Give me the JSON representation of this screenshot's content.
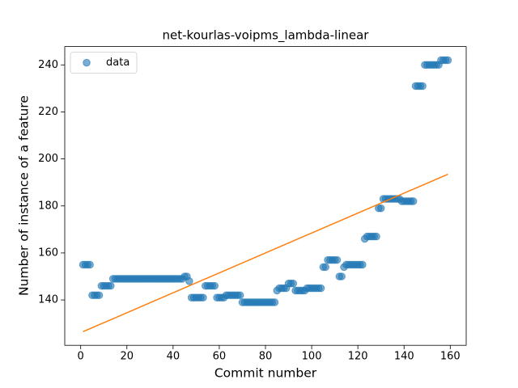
{
  "chart_data": {
    "type": "scatter",
    "title": "net-kourlas-voipms_lambda-linear",
    "xlabel": "Commit number",
    "ylabel": "Number of instance of a feature",
    "xlim": [
      -6.9,
      166.9
    ],
    "ylim": [
      120.7,
      247.8
    ],
    "xticks": [
      0,
      20,
      40,
      60,
      80,
      100,
      120,
      140,
      160
    ],
    "yticks": [
      140,
      160,
      180,
      200,
      220,
      240
    ],
    "legend": "upper left",
    "series": [
      {
        "name": "data",
        "color": "#1f77b4",
        "x": [
          1,
          2,
          3,
          4,
          5,
          6,
          7,
          8,
          9,
          10,
          11,
          12,
          13,
          14,
          15,
          16,
          17,
          18,
          19,
          20,
          21,
          22,
          23,
          24,
          25,
          26,
          27,
          28,
          29,
          30,
          31,
          32,
          33,
          34,
          35,
          36,
          37,
          38,
          39,
          40,
          41,
          42,
          43,
          44,
          45,
          46,
          47,
          48,
          49,
          50,
          51,
          52,
          53,
          54,
          55,
          56,
          57,
          58,
          59,
          60,
          61,
          62,
          63,
          64,
          65,
          66,
          67,
          68,
          69,
          70,
          71,
          72,
          73,
          74,
          75,
          76,
          77,
          78,
          79,
          80,
          81,
          82,
          83,
          84,
          85,
          86,
          87,
          88,
          89,
          90,
          91,
          92,
          93,
          94,
          95,
          96,
          97,
          98,
          99,
          100,
          101,
          102,
          103,
          104,
          105,
          106,
          107,
          108,
          109,
          110,
          111,
          112,
          113,
          114,
          115,
          116,
          117,
          118,
          119,
          120,
          121,
          122,
          123,
          124,
          125,
          126,
          127,
          128,
          129,
          130,
          131,
          132,
          133,
          134,
          135,
          136,
          137,
          138,
          139,
          140,
          141,
          142,
          143,
          144,
          145,
          146,
          147,
          148,
          149,
          150,
          151,
          152,
          153,
          154,
          155,
          156,
          157,
          158,
          159
        ],
        "values": [
          155,
          155,
          155,
          155,
          142,
          142,
          142,
          142,
          146,
          146,
          146,
          146,
          146,
          149,
          149,
          149,
          149,
          149,
          149,
          149,
          149,
          149,
          149,
          149,
          149,
          149,
          149,
          149,
          149,
          149,
          149,
          149,
          149,
          149,
          149,
          149,
          149,
          149,
          149,
          149,
          149,
          149,
          149,
          149,
          150,
          150,
          148,
          141,
          141,
          141,
          141,
          141,
          141,
          146,
          146,
          146,
          146,
          146,
          141,
          141,
          141,
          141,
          142,
          142,
          142,
          142,
          142,
          142,
          142,
          139,
          139,
          139,
          139,
          139,
          139,
          139,
          139,
          139,
          139,
          139,
          139,
          139,
          139,
          139,
          144,
          145,
          145,
          145,
          145,
          147,
          147,
          147,
          144,
          144,
          144,
          144,
          144,
          145,
          145,
          145,
          145,
          145,
          145,
          145,
          154,
          154,
          157,
          157,
          157,
          157,
          157,
          150,
          150,
          154,
          155,
          155,
          155,
          155,
          155,
          155,
          155,
          155,
          166,
          167,
          167,
          167,
          167,
          167,
          179,
          179,
          183,
          183,
          183,
          183,
          183,
          183,
          183,
          183,
          182,
          182,
          182,
          182,
          182,
          182,
          231,
          231,
          231,
          231,
          240,
          240,
          240,
          240,
          240,
          240,
          240,
          242,
          242,
          242,
          242
        ]
      }
    ],
    "fit": {
      "color": "#ff7f0e",
      "x": [
        1,
        159
      ],
      "values": [
        126.5,
        193.5
      ]
    }
  }
}
